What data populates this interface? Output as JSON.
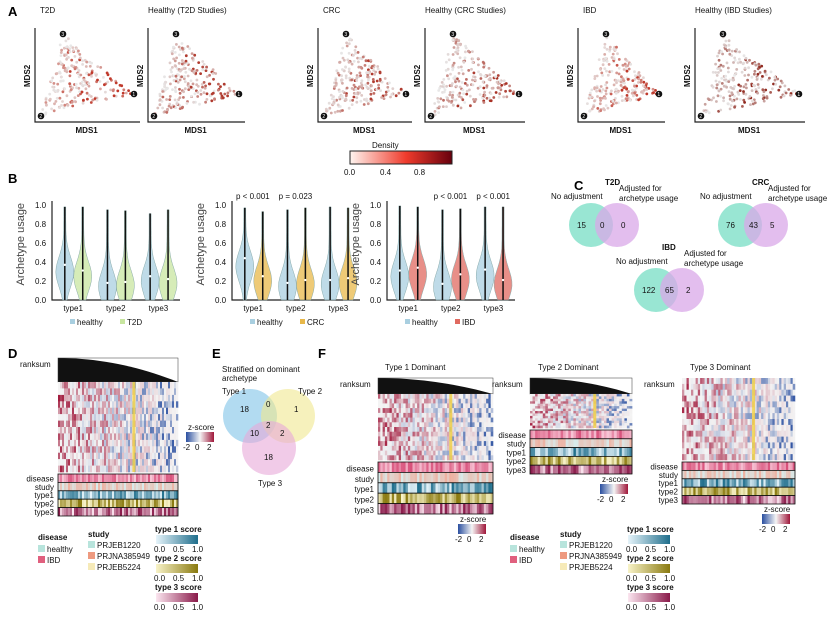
{
  "panel_labels": [
    "A",
    "B",
    "C",
    "D",
    "E",
    "F"
  ],
  "panelA": {
    "plots": [
      {
        "title": "T2D",
        "tint": "#c0392b"
      },
      {
        "title": "Healthy  (T2D Studies)",
        "tint": "#b03a2e"
      },
      {
        "title": "CRC",
        "tint": "#b03a2e"
      },
      {
        "title": "Healthy (CRC Studies)",
        "tint": "#a93226"
      },
      {
        "title": "IBD",
        "tint": "#c0392b"
      },
      {
        "title": "Healthy (IBD Studies)",
        "tint": "#922b21"
      }
    ],
    "xlabel": "MDS1",
    "ylabel": "MDS2",
    "vertex_labels": [
      "3",
      "1",
      "2"
    ],
    "colorbar": {
      "title": "Density",
      "ticks": [
        "0.0",
        "0.4",
        "0.8"
      ],
      "colors": [
        "#fff5f0",
        "#ef3b2c",
        "#67000d"
      ]
    }
  },
  "chart_data": [
    {
      "type": "violin",
      "ylabel": "Archetype usage",
      "ylim": [
        0,
        1
      ],
      "yticks": [
        "0.0",
        "0.2",
        "0.4",
        "0.6",
        "0.8",
        "1.0"
      ],
      "categories": [
        "type1",
        "type2",
        "type3"
      ],
      "series": [
        {
          "name": "healthy",
          "color": "#a9cfe0",
          "median": [
            0.37,
            0.18,
            0.25
          ],
          "max": [
            0.98,
            0.95,
            0.91
          ]
        },
        {
          "name": "T2D",
          "color": "#c8e6a0",
          "median": [
            0.31,
            0.19,
            0.22
          ],
          "max": [
            0.98,
            0.94,
            0.95
          ]
        }
      ],
      "annotations": [
        "",
        "",
        ""
      ]
    },
    {
      "type": "violin",
      "ylabel": "Archetype usage",
      "ylim": [
        0,
        1
      ],
      "yticks": [
        "0.0",
        "0.2",
        "0.4",
        "0.6",
        "0.8",
        "1.0"
      ],
      "categories": [
        "type1",
        "type2",
        "type3"
      ],
      "series": [
        {
          "name": "healthy",
          "color": "#a9cfe0",
          "median": [
            0.44,
            0.18,
            0.21
          ],
          "max": [
            0.97,
            0.95,
            0.98
          ]
        },
        {
          "name": "CRC",
          "color": "#e8b84a",
          "median": [
            0.25,
            0.21,
            0.23
          ],
          "max": [
            0.93,
            0.97,
            0.97
          ]
        }
      ],
      "annotations": [
        "p < 0.001",
        "p = 0.023",
        ""
      ]
    },
    {
      "type": "violin",
      "ylabel": "Archetype usage",
      "ylim": [
        0,
        1
      ],
      "yticks": [
        "0.0",
        "0.2",
        "0.4",
        "0.6",
        "0.8",
        "1.0"
      ],
      "categories": [
        "type1",
        "type2",
        "type3"
      ],
      "series": [
        {
          "name": "healthy",
          "color": "#a9cfe0",
          "median": [
            0.31,
            0.17,
            0.32
          ],
          "max": [
            0.99,
            0.95,
            0.98
          ]
        },
        {
          "name": "IBD",
          "color": "#e06a60",
          "median": [
            0.34,
            0.27,
            0.21
          ],
          "max": [
            0.98,
            0.96,
            0.98
          ]
        }
      ],
      "annotations": [
        "",
        "p < 0.001",
        "p < 0.001"
      ]
    }
  ],
  "panelC": {
    "left_label": "No adjustment",
    "right_label_1": "Adjusted for",
    "right_label_2": "archetype usage",
    "venns": [
      {
        "title": "T2D",
        "left": "15",
        "mid": "0",
        "right": "0"
      },
      {
        "title": "CRC",
        "left": "76",
        "mid": "43",
        "right": "5"
      },
      {
        "title": "IBD",
        "left": "122",
        "mid": "65",
        "right": "2"
      }
    ],
    "colors": {
      "left": "#7fe0c8",
      "right": "#d9a8e8"
    }
  },
  "heat": {
    "ranksum": "ranksum",
    "rows": [
      "disease",
      "study",
      "type1",
      "type2",
      "type3"
    ],
    "zscore": "z-score",
    "zticks": [
      "-2",
      "0",
      "2"
    ]
  },
  "legend": {
    "disease_title": "disease",
    "disease": [
      {
        "label": "healthy",
        "color": "#b8e4dc"
      },
      {
        "label": "IBD",
        "color": "#e0607e"
      }
    ],
    "study_title": "study",
    "study": [
      {
        "label": "PRJEB1220",
        "color": "#b8e4dc"
      },
      {
        "label": "PRJNA385949",
        "color": "#ee9a80"
      },
      {
        "label": "PRJEB5224",
        "color": "#f6eab8"
      }
    ],
    "scores": [
      {
        "title": "type 1 score",
        "c1": "#e6f4fa",
        "c2": "#1f6e8c"
      },
      {
        "title": "type 2 score",
        "c1": "#f8f3c8",
        "c2": "#8a7a10"
      },
      {
        "title": "type 3 score",
        "c1": "#fbe6f0",
        "c2": "#8a1a4a"
      }
    ],
    "score_ticks": [
      "0.0",
      "0.5",
      "1.0"
    ]
  },
  "panelE": {
    "title_1": "Stratified on dominant",
    "title_2": "archetype",
    "labels": [
      "Type 1",
      "Type 2",
      "Type 3"
    ],
    "values": {
      "t1": "18",
      "t2": "1",
      "t3": "18",
      "t12": "0",
      "t13": "10",
      "t23": "2",
      "t123": "2"
    },
    "colors": [
      "#7ec3e8",
      "#f0e890",
      "#e8a8d8"
    ]
  },
  "panelF": {
    "titles": [
      "Type 1 Dominant",
      "Type 2 Dominant",
      "Type 3 Dominant"
    ]
  }
}
